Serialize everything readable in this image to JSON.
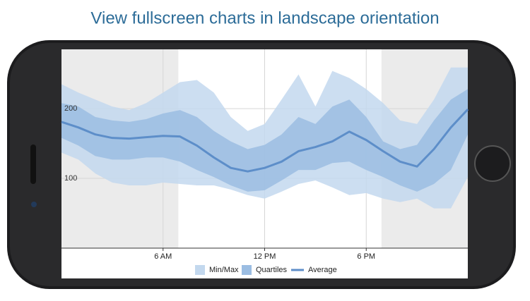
{
  "header": {
    "title": "View fullscreen charts in landscape orientation"
  },
  "chart_data": {
    "type": "band",
    "x": [
      0,
      1,
      2,
      3,
      4,
      5,
      6,
      7,
      8,
      9,
      10,
      11,
      12,
      13,
      14,
      15,
      16,
      17,
      18,
      19,
      20,
      21,
      22,
      23,
      24
    ],
    "xlim": [
      0,
      24
    ],
    "xticks": [
      {
        "value": 6,
        "label": "6 AM"
      },
      {
        "value": 12,
        "label": "12 PM"
      },
      {
        "value": 18,
        "label": "6 PM"
      }
    ],
    "ylim": [
      0,
      285
    ],
    "yticks": [
      100,
      200
    ],
    "grid": true,
    "shaded_ranges": [
      [
        0,
        6.9
      ],
      [
        18.9,
        24
      ]
    ],
    "shade_color": "#ebebeb",
    "legend": "bottom",
    "series": [
      {
        "name": "Min/Max",
        "color": "#c3d8ee",
        "upper": [
          235,
          223,
          213,
          203,
          198,
          208,
          223,
          238,
          241,
          223,
          188,
          168,
          178,
          213,
          249,
          203,
          254,
          244,
          228,
          208,
          183,
          178,
          213,
          259,
          259
        ],
        "lower": [
          137,
          127,
          107,
          94,
          90,
          90,
          94,
          92,
          90,
          90,
          84,
          76,
          71,
          81,
          92,
          97,
          87,
          76,
          79,
          71,
          66,
          71,
          57,
          57,
          102
        ]
      },
      {
        "name": "Quartiles",
        "color": "#9bbde2",
        "upper": [
          208,
          203,
          188,
          183,
          181,
          185,
          193,
          198,
          188,
          168,
          153,
          142,
          148,
          163,
          188,
          178,
          203,
          213,
          188,
          153,
          142,
          148,
          183,
          213,
          228
        ],
        "lower": [
          158,
          147,
          132,
          127,
          127,
          130,
          130,
          124,
          112,
          102,
          90,
          81,
          83,
          97,
          112,
          112,
          122,
          124,
          112,
          102,
          90,
          81,
          92,
          112,
          163
        ]
      },
      {
        "name": "Average",
        "color": "#5d8ec9",
        "values": [
          181,
          173,
          163,
          158,
          157,
          159,
          161,
          160,
          147,
          130,
          115,
          110,
          115,
          124,
          139,
          145,
          153,
          167,
          155,
          139,
          124,
          117,
          142,
          173,
          199
        ]
      }
    ]
  }
}
